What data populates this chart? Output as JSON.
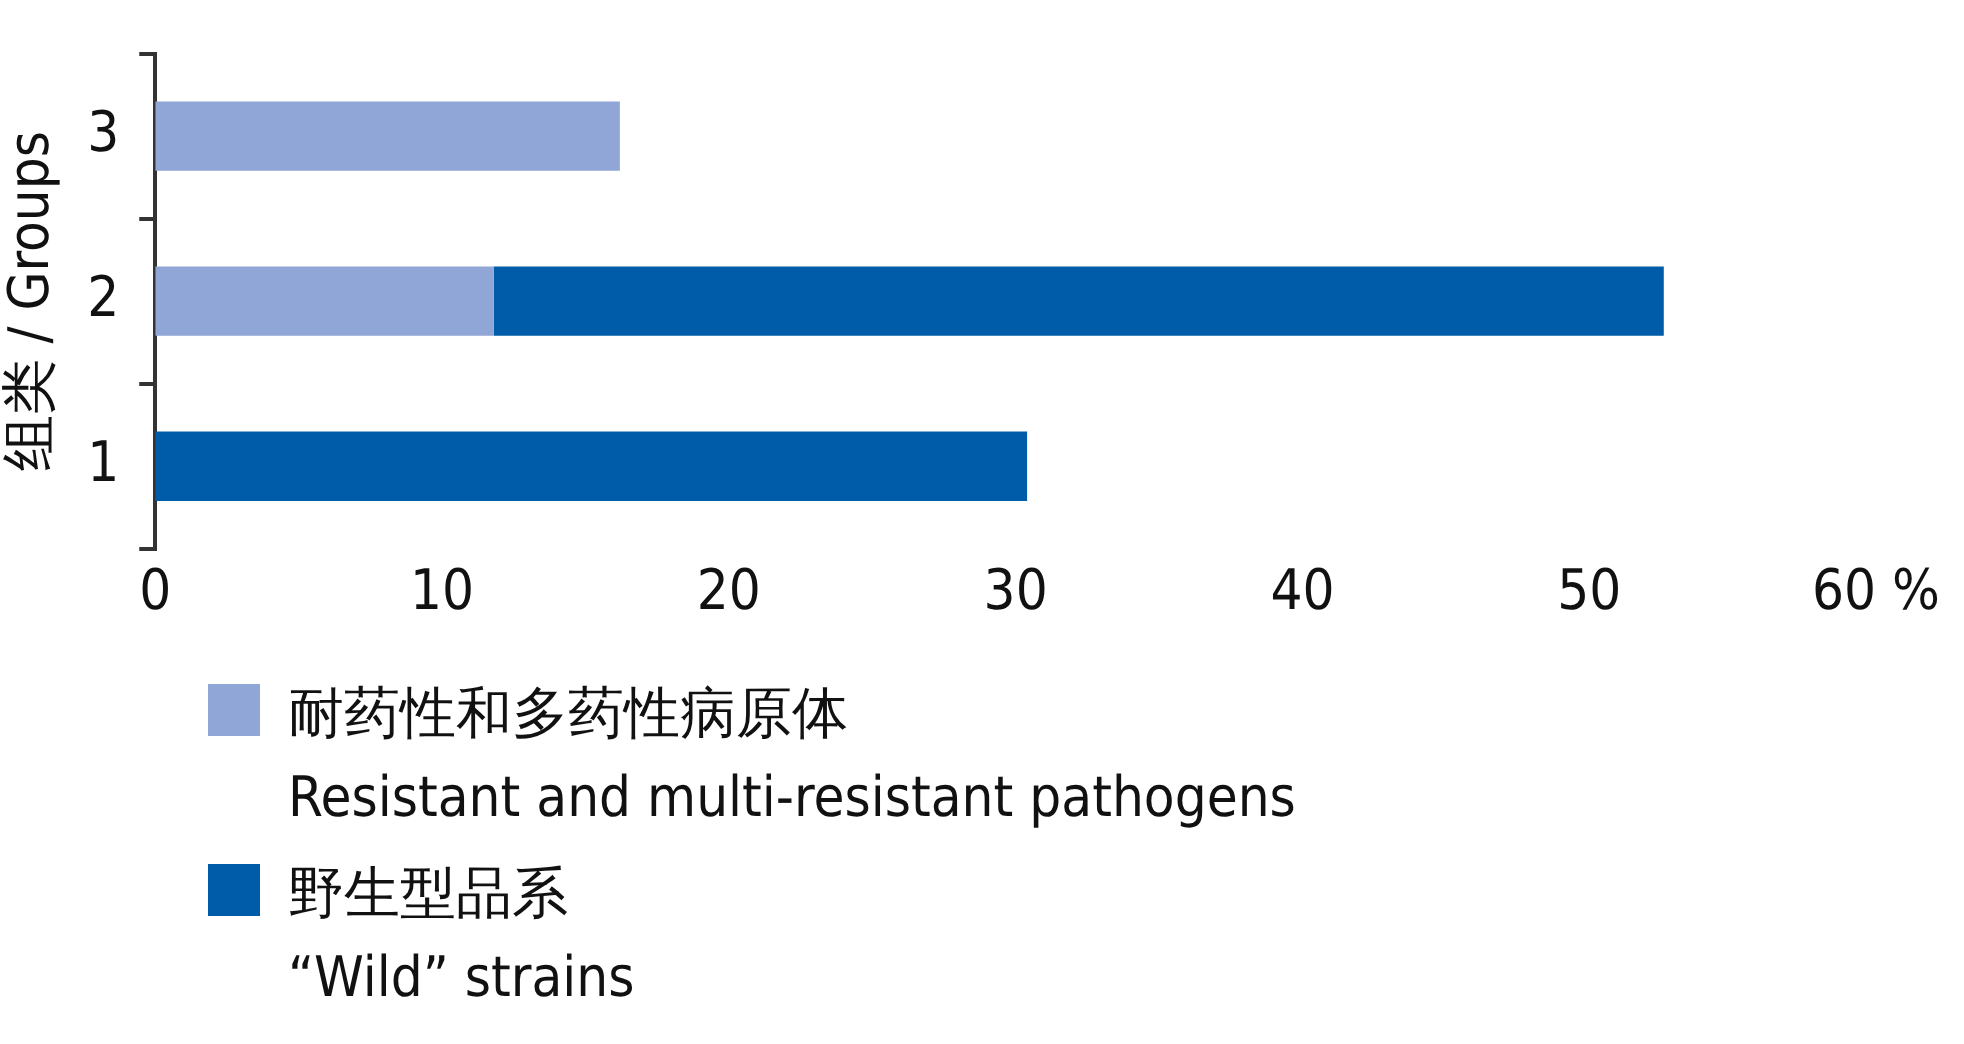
{
  "chart_data": {
    "type": "bar",
    "orientation": "horizontal",
    "stacked": true,
    "ylabel": "组类 / Groups",
    "categories": [
      "3",
      "2",
      "1"
    ],
    "series": [
      {
        "name": "耐药性和多药性病原体\nResistant and multi-resistant pathogens",
        "color": "#8fa6d6",
        "values": [
          16.2,
          11.8,
          null
        ]
      },
      {
        "name": "野生型品系\n“Wild” strains",
        "color": "#005ba8",
        "values": [
          null,
          40.8,
          30.4
        ]
      }
    ],
    "xlim": [
      0,
      60
    ],
    "xticks": [
      0,
      10,
      20,
      30,
      40,
      50,
      {
        "value": 60,
        "label": "60 %"
      }
    ],
    "grid": false,
    "legend": "bottom"
  }
}
